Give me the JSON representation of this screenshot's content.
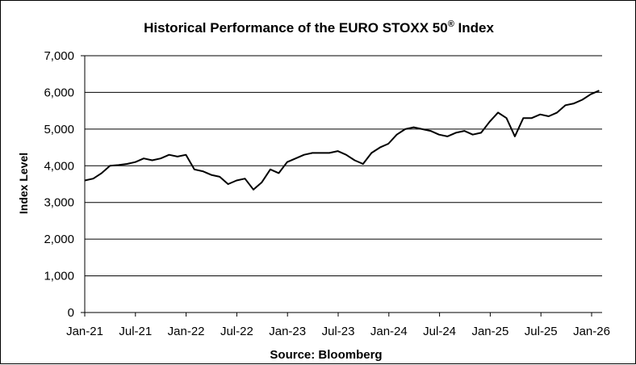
{
  "chart_data": {
    "type": "line",
    "title": "Historical Performance of the EURO STOXX 50",
    "title_superscript": "®",
    "title_suffix": " Index",
    "xlabel": "Source: Bloomberg",
    "ylabel": "Index Level",
    "ylim": [
      0,
      7000
    ],
    "yticks": [
      0,
      1000,
      2000,
      3000,
      4000,
      5000,
      6000,
      7000
    ],
    "ytick_labels": [
      "0",
      "1,000",
      "2,000",
      "3,000",
      "4,000",
      "5,000",
      "6,000",
      "7,000"
    ],
    "xlim": [
      "2021-01",
      "2026-02"
    ],
    "xtick_labels": [
      "Jan-21",
      "Jul-21",
      "Jan-22",
      "Jul-22",
      "Jan-23",
      "Jul-23",
      "Jan-24",
      "Jul-24",
      "Jan-25",
      "Jul-25",
      "Jan-26"
    ],
    "grid": "horizontal",
    "line_color": "#000000",
    "series": [
      {
        "x": [
          "2021-01",
          "2021-02",
          "2021-03",
          "2021-04",
          "2021-05",
          "2021-06",
          "2021-07",
          "2021-08",
          "2021-09",
          "2021-10",
          "2021-11",
          "2021-12",
          "2022-01",
          "2022-02",
          "2022-03",
          "2022-04",
          "2022-05",
          "2022-06",
          "2022-07",
          "2022-08",
          "2022-09",
          "2022-10",
          "2022-11",
          "2022-12",
          "2023-01",
          "2023-02",
          "2023-03",
          "2023-04",
          "2023-05",
          "2023-06",
          "2023-07",
          "2023-08",
          "2023-09",
          "2023-10",
          "2023-11",
          "2023-12",
          "2024-01",
          "2024-02",
          "2024-03",
          "2024-04",
          "2024-05",
          "2024-06",
          "2024-07",
          "2024-08",
          "2024-09",
          "2024-10",
          "2024-11",
          "2024-12",
          "2025-01",
          "2025-02",
          "2025-03",
          "2025-04",
          "2025-05",
          "2025-06",
          "2025-07",
          "2025-08",
          "2025-09",
          "2025-10",
          "2025-11",
          "2025-12",
          "2026-01",
          "2026-02"
        ],
        "values": [
          3600,
          3650,
          3800,
          4000,
          4020,
          4050,
          4100,
          4200,
          4150,
          4200,
          4300,
          4250,
          4300,
          3900,
          3850,
          3750,
          3700,
          3500,
          3600,
          3650,
          3350,
          3550,
          3900,
          3800,
          4100,
          4200,
          4300,
          4350,
          4350,
          4350,
          4400,
          4300,
          4150,
          4050,
          4350,
          4500,
          4600,
          4850,
          5000,
          5050,
          5000,
          4950,
          4850,
          4800,
          4900,
          4950,
          4850,
          4900,
          5200,
          5450,
          5300,
          4800,
          5300,
          5300,
          5400,
          5350,
          5450,
          5650,
          5700,
          5800,
          5950,
          6050
        ]
      }
    ]
  }
}
